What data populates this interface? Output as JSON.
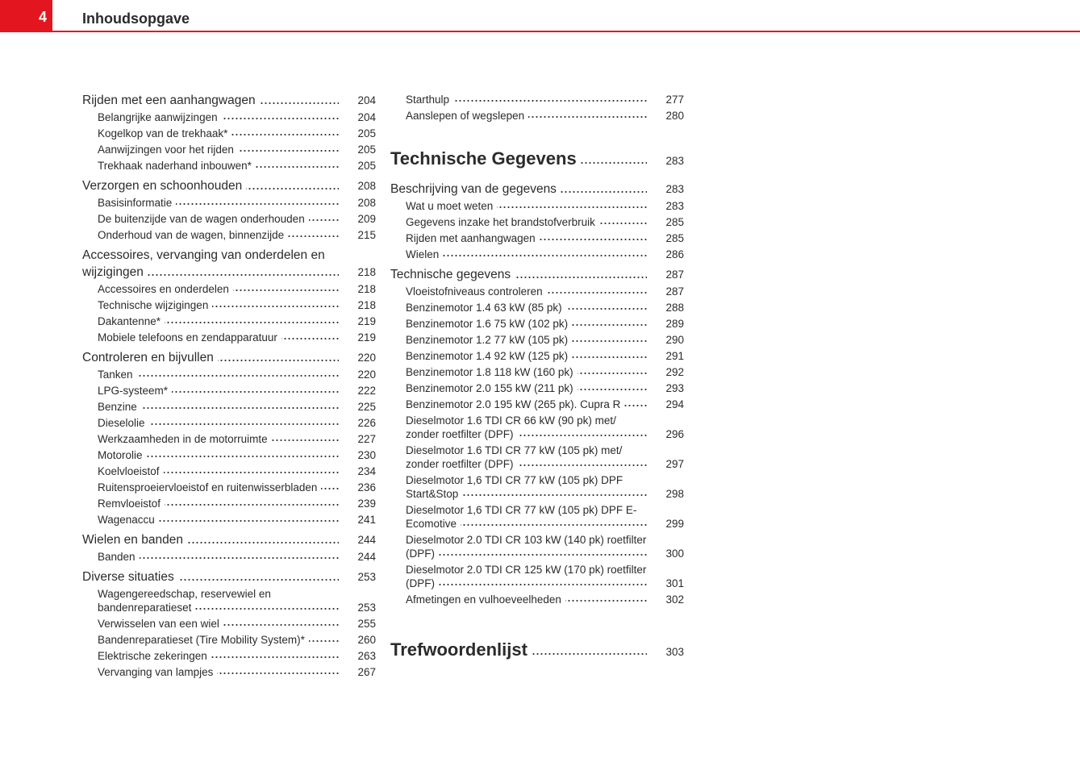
{
  "header": {
    "page_number": "4",
    "title": "Inhoudsopgave",
    "accent_color": "#e3161f"
  },
  "left": [
    {
      "level": 1,
      "text": "Rijden met een aanhangwagen",
      "page": "204"
    },
    {
      "level": 2,
      "text": "Belangrijke aanwijzingen",
      "page": "204"
    },
    {
      "level": 2,
      "text": "Kogelkop van de trekhaak*",
      "page": "205"
    },
    {
      "level": 2,
      "text": "Aanwijzingen voor het rijden",
      "page": "205"
    },
    {
      "level": 2,
      "text": "Trekhaak naderhand inbouwen*",
      "page": "205"
    },
    {
      "level": 1,
      "text": "Verzorgen en schoonhouden",
      "page": "208"
    },
    {
      "level": 2,
      "text": "Basisinformatie",
      "page": "208"
    },
    {
      "level": 2,
      "text": "De buitenzijde van de wagen onderhouden",
      "page": "209"
    },
    {
      "level": 2,
      "text": "Onderhoud van de wagen, binnenzijde",
      "page": "215"
    },
    {
      "level": 1,
      "text": "Accessoires, vervanging van onderdelen en wijzigingen",
      "page": "218"
    },
    {
      "level": 2,
      "text": "Accessoires en onderdelen",
      "page": "218"
    },
    {
      "level": 2,
      "text": "Technische wijzigingen",
      "page": "218"
    },
    {
      "level": 2,
      "text": "Dakantenne*",
      "page": "219"
    },
    {
      "level": 2,
      "text": "Mobiele telefoons en zendapparatuur",
      "page": "219"
    },
    {
      "level": 1,
      "text": "Controleren en bijvullen",
      "page": "220"
    },
    {
      "level": 2,
      "text": "Tanken",
      "page": "220"
    },
    {
      "level": 2,
      "text": "LPG-systeem*",
      "page": "222"
    },
    {
      "level": 2,
      "text": "Benzine",
      "page": "225"
    },
    {
      "level": 2,
      "text": "Dieselolie",
      "page": "226"
    },
    {
      "level": 2,
      "text": "Werkzaamheden in de motorruimte",
      "page": "227"
    },
    {
      "level": 2,
      "text": "Motorolie",
      "page": "230"
    },
    {
      "level": 2,
      "text": "Koelvloeistof",
      "page": "234"
    },
    {
      "level": 2,
      "text": "Ruitensproeiervloeistof en ruitenwisserbladen",
      "page": "236"
    },
    {
      "level": 2,
      "text": "Remvloeistof",
      "page": "239"
    },
    {
      "level": 2,
      "text": "Wagenaccu",
      "page": "241"
    },
    {
      "level": 1,
      "text": "Wielen en banden",
      "page": "244"
    },
    {
      "level": 2,
      "text": "Banden",
      "page": "244"
    },
    {
      "level": 1,
      "text": "Diverse situaties",
      "page": "253"
    },
    {
      "level": 2,
      "text": "Wagengereedschap, reservewiel en bandenreparatieset",
      "page": "253"
    },
    {
      "level": 2,
      "text": "Verwisselen van een wiel",
      "page": "255"
    },
    {
      "level": 2,
      "text": "Bandenreparatieset (Tire Mobility System)*",
      "page": "260"
    },
    {
      "level": 2,
      "text": "Elektrische zekeringen",
      "page": "263"
    },
    {
      "level": 2,
      "text": "Vervanging van lampjes",
      "page": "267"
    }
  ],
  "right": [
    {
      "level": 2,
      "text": "Starthulp",
      "page": "277"
    },
    {
      "level": 2,
      "text": "Aanslepen of wegslepen",
      "page": "280"
    },
    {
      "level": 0,
      "text": "Technische Gegevens",
      "page": "283"
    },
    {
      "level": 1,
      "text": "Beschrijving van de gegevens",
      "page": "283"
    },
    {
      "level": 2,
      "text": "Wat u moet weten",
      "page": "283"
    },
    {
      "level": 2,
      "text": "Gegevens inzake het brandstofverbruik",
      "page": "285"
    },
    {
      "level": 2,
      "text": "Rijden met aanhangwagen",
      "page": "285"
    },
    {
      "level": 2,
      "text": "Wielen",
      "page": "286"
    },
    {
      "level": 1,
      "text": "Technische gegevens",
      "page": "287"
    },
    {
      "level": 2,
      "text": "Vloeistofniveaus controleren",
      "page": "287"
    },
    {
      "level": 2,
      "text": "Benzinemotor 1.4 63 kW (85 pk)",
      "page": "288"
    },
    {
      "level": 2,
      "text": "Benzinemotor 1.6 75 kW (102 pk)",
      "page": "289"
    },
    {
      "level": 2,
      "text": "Benzinemotor 1.2 77 kW (105 pk)",
      "page": "290"
    },
    {
      "level": 2,
      "text": "Benzinemotor 1.4 92 kW (125 pk)",
      "page": "291"
    },
    {
      "level": 2,
      "text": "Benzinemotor 1.8 118 kW (160 pk)",
      "page": "292"
    },
    {
      "level": 2,
      "text": "Benzinemotor 2.0 155 kW (211 pk)",
      "page": "293"
    },
    {
      "level": 2,
      "text": "Benzinemotor 2.0 195 kW (265 pk). Cupra R",
      "page": "294"
    },
    {
      "level": 2,
      "text": "Dieselmotor 1.6 TDI CR 66 kW (90 pk) met/ zonder roetfilter (DPF)",
      "page": "296"
    },
    {
      "level": 2,
      "text": "Dieselmotor 1.6 TDI CR 77 kW (105 pk) met/ zonder roetfilter (DPF)",
      "page": "297"
    },
    {
      "level": 2,
      "text": "Dieselmotor 1,6 TDI CR 77 kW (105 pk) DPF Start&Stop",
      "page": "298"
    },
    {
      "level": 2,
      "text": "Dieselmotor 1,6 TDI CR 77 kW (105 pk) DPF E-Ecomotive",
      "page": "299"
    },
    {
      "level": 2,
      "text": "Dieselmotor 2.0 TDI CR 103 kW (140 pk) roetfilter (DPF)",
      "page": "300"
    },
    {
      "level": 2,
      "text": "Dieselmotor 2.0 TDI CR 125 kW (170 pk) roetfilter (DPF)",
      "page": "301"
    },
    {
      "level": 2,
      "text": "Afmetingen en vulhoeveelheden",
      "page": "302"
    },
    {
      "level": 0,
      "text": "Trefwoordenlijst",
      "page": "303"
    }
  ]
}
